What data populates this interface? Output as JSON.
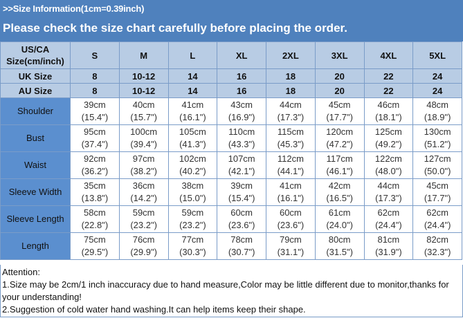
{
  "header": {
    "title": ">>Size Information(1cm=0.39inch)",
    "subtitle": "Please check the size chart carefully before placing the order."
  },
  "table": {
    "corner": [
      "US/CA",
      "Size(cm/inch)"
    ],
    "sizes": [
      "S",
      "M",
      "L",
      "XL",
      "2XL",
      "3XL",
      "4XL",
      "5XL"
    ],
    "size_rows": [
      {
        "label": "UK Size",
        "values": [
          "8",
          "10-12",
          "14",
          "16",
          "18",
          "20",
          "22",
          "24"
        ]
      },
      {
        "label": "AU Size",
        "values": [
          "8",
          "10-12",
          "14",
          "16",
          "18",
          "20",
          "22",
          "24"
        ]
      }
    ],
    "rows": [
      {
        "label": "Shoulder",
        "cm": [
          "39cm",
          "40cm",
          "41cm",
          "43cm",
          "44cm",
          "45cm",
          "46cm",
          "48cm"
        ],
        "inch": [
          "(15.4\")",
          "(15.7\")",
          "(16.1\")",
          "(16.9\")",
          "(17.3\")",
          "(17.7\")",
          "(18.1\")",
          "(18.9\")"
        ]
      },
      {
        "label": "Bust",
        "cm": [
          "95cm",
          "100cm",
          "105cm",
          "110cm",
          "115cm",
          "120cm",
          "125cm",
          "130cm"
        ],
        "inch": [
          "(37.4\")",
          "(39.4\")",
          "(41.3\")",
          "(43.3\")",
          "(45.3\")",
          "(47.2\")",
          "(49.2\")",
          "(51.2\")"
        ]
      },
      {
        "label": "Waist",
        "cm": [
          "92cm",
          "97cm",
          "102cm",
          "107cm",
          "112cm",
          "117cm",
          "122cm",
          "127cm"
        ],
        "inch": [
          "(36.2\")",
          "(38.2\")",
          "(40.2\")",
          "(42.1\")",
          "(44.1\")",
          "(46.1\")",
          "(48.0\")",
          "(50.0\")"
        ]
      },
      {
        "label": "Sleeve Width",
        "cm": [
          "35cm",
          "36cm",
          "38cm",
          "39cm",
          "41cm",
          "42cm",
          "44cm",
          "45cm"
        ],
        "inch": [
          "(13.8\")",
          "(14.2\")",
          "(15.0\")",
          "(15.4\")",
          "(16.1\")",
          "(16.5\")",
          "(17.3\")",
          "(17.7\")"
        ]
      },
      {
        "label": "Sleeve Length",
        "cm": [
          "58cm",
          "59cm",
          "59cm",
          "60cm",
          "60cm",
          "61cm",
          "62cm",
          "62cm"
        ],
        "inch": [
          "(22.8\")",
          "(23.2\")",
          "(23.2\")",
          "(23.6\")",
          "(23.6\")",
          "(24.0\")",
          "(24.4\")",
          "(24.4\")"
        ]
      },
      {
        "label": "Length",
        "cm": [
          "75cm",
          "76cm",
          "77cm",
          "78cm",
          "79cm",
          "80cm",
          "81cm",
          "82cm"
        ],
        "inch": [
          "(29.5\")",
          "(29.9\")",
          "(30.3\")",
          "(30.7\")",
          "(31.1\")",
          "(31.5\")",
          "(31.9\")",
          "(32.3\")"
        ]
      }
    ]
  },
  "attention": {
    "heading": "Attention:",
    "notes": [
      "1.Size may be 2cm/1 inch inaccuracy due to hand measure,Color may be little different due to monitor,thanks for your understanding!",
      "2.Suggestion of cold water hand washing.It can help items keep their shape."
    ]
  },
  "colors": {
    "band": "#4f81bd",
    "header_cells": "#b8cce4",
    "label_cells": "#5b8fcf"
  }
}
